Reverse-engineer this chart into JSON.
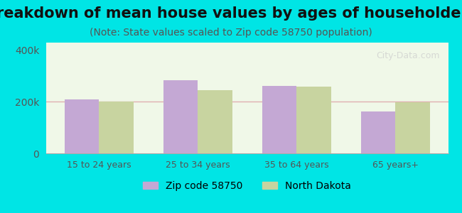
{
  "title": "Breakdown of mean house values by ages of householders",
  "subtitle": "(Note: State values scaled to Zip code 58750 population)",
  "categories": [
    "15 to 24 years",
    "25 to 34 years",
    "35 to 64 years",
    "65 years+"
  ],
  "zip_values": [
    210000,
    285000,
    262000,
    162000
  ],
  "state_values": [
    200000,
    245000,
    258000,
    198000
  ],
  "zip_color": "#c4a8d4",
  "state_color": "#c8d4a0",
  "ylim": [
    0,
    430000
  ],
  "yticks": [
    0,
    200000,
    400000
  ],
  "ytick_labels": [
    "0",
    "200k",
    "400k"
  ],
  "background_cyan": "#00e5e5",
  "plot_bg": "#f0f8e8",
  "legend_zip": "Zip code 58750",
  "legend_state": "North Dakota",
  "title_fontsize": 15,
  "subtitle_fontsize": 10,
  "bar_width": 0.35,
  "grid_color": "#e0b0b0",
  "tick_color": "#555555"
}
